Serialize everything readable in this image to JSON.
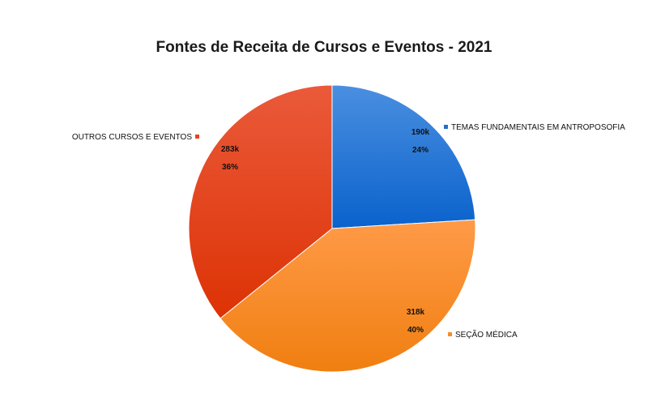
{
  "chart_data": {
    "type": "pie",
    "title": "Fontes de Receita de Cursos e Eventos - 2021",
    "slices": [
      {
        "name": "TEMAS FUNDAMENTAIS EM ANTROPOSOFIA",
        "value": 190,
        "value_label": "190k",
        "percent_label": "24%",
        "color": "#1f6fd0"
      },
      {
        "name": "SEÇÃO MÉDICA",
        "value": 318,
        "value_label": "318k",
        "percent_label": "40%",
        "color": "#fb8a25"
      },
      {
        "name": "OUTROS CURSOS E EVENTOS",
        "value": 283,
        "value_label": "283k",
        "percent_label": "36%",
        "color": "#e8431f"
      }
    ],
    "start_angle": "12 o'clock, clockwise",
    "legend": "labels beside slices"
  }
}
